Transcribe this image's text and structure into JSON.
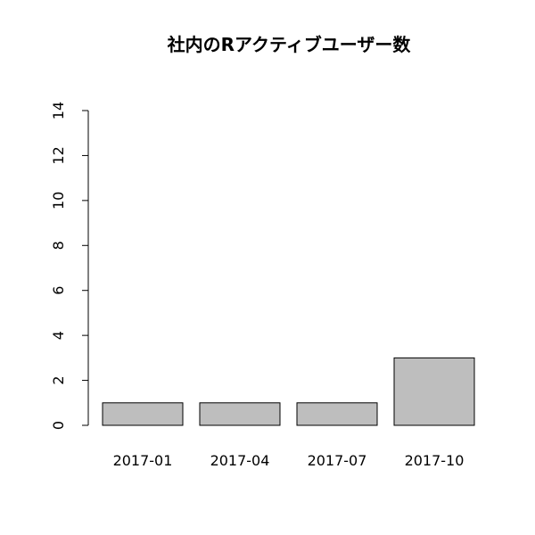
{
  "chart_data": {
    "type": "bar",
    "title": "社内のRアクティブユーザー数",
    "xlabel": "",
    "ylabel": "",
    "categories": [
      "2017-01",
      "2017-04",
      "2017-07",
      "2017-10"
    ],
    "values": [
      1,
      1,
      1,
      3
    ],
    "ylim": [
      0,
      14
    ],
    "yticks": [
      "0",
      "2",
      "4",
      "6",
      "8",
      "10",
      "12",
      "14"
    ],
    "grid": false,
    "bar_color": "#bebebe",
    "bar_stroke": "#000000"
  }
}
